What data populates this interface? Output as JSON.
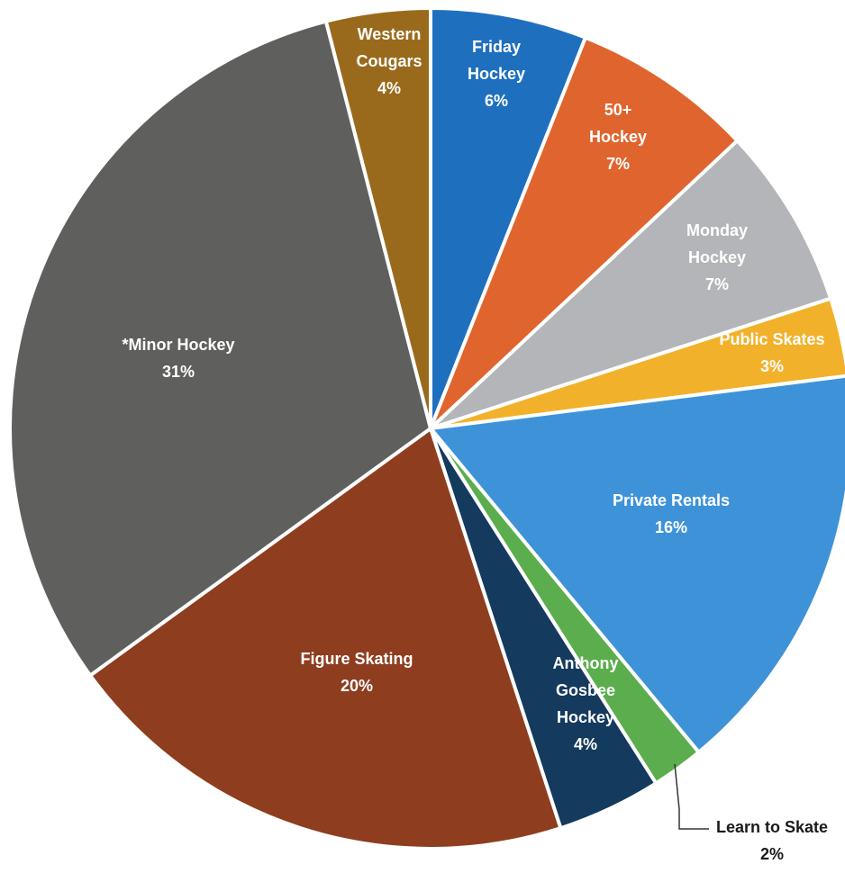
{
  "chart_data": {
    "type": "pie",
    "title": "",
    "slices": [
      {
        "name": "Friday Hockey",
        "lines": [
          "Friday",
          "Hockey"
        ],
        "value": 6,
        "pct_label": "6%",
        "color": "#1f6fbf"
      },
      {
        "name": "50+ Hockey",
        "lines": [
          "50+",
          "Hockey"
        ],
        "value": 7,
        "pct_label": "7%",
        "color": "#e0642e"
      },
      {
        "name": "Monday Hockey",
        "lines": [
          "Monday",
          "Hockey"
        ],
        "value": 7,
        "pct_label": "7%",
        "color": "#b4b5b8"
      },
      {
        "name": "Public Skates",
        "lines": [
          "Public Skates"
        ],
        "value": 3,
        "pct_label": "3%",
        "color": "#f2b12a"
      },
      {
        "name": "Private Rentals",
        "lines": [
          "Private Rentals"
        ],
        "value": 16,
        "pct_label": "16%",
        "color": "#3e93d8"
      },
      {
        "name": "Learn to Skate",
        "lines": [
          "Learn to Skate"
        ],
        "value": 2,
        "pct_label": "2%",
        "color": "#5bad4e"
      },
      {
        "name": "Anthony Gosbee Hockey",
        "lines": [
          "Anthony",
          "Gosbee",
          "Hockey"
        ],
        "value": 4,
        "pct_label": "4%",
        "color": "#143a5e"
      },
      {
        "name": "Figure Skating",
        "lines": [
          "Figure Skating"
        ],
        "value": 20,
        "pct_label": "20%",
        "color": "#8e3d1f"
      },
      {
        "name": "*Minor Hockey",
        "lines": [
          "*Minor Hockey"
        ],
        "value": 31,
        "pct_label": "31%",
        "color": "#5f605e"
      },
      {
        "name": "Western Cougars",
        "lines": [
          "Western",
          "Cougars"
        ],
        "value": 4,
        "pct_label": "4%",
        "color": "#9a6a1c"
      }
    ]
  }
}
